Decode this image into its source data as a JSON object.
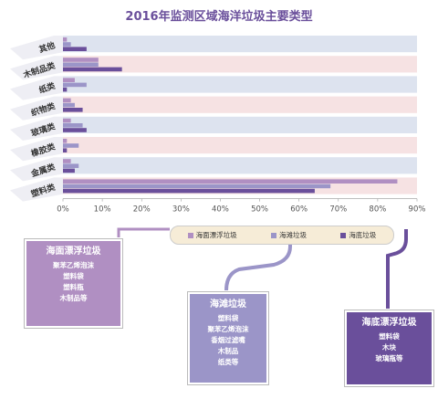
{
  "chart_data": {
    "type": "bar",
    "title": "2016年监测区域海洋垃圾主要类型",
    "categories": [
      "其他",
      "木制品类",
      "纸类",
      "织物类",
      "玻璃类",
      "橡胶类",
      "金属类",
      "塑料类"
    ],
    "series": [
      {
        "name": "海面漂浮垃圾",
        "color": "#b08fc2",
        "values": [
          1,
          9,
          3,
          2,
          2,
          1,
          2,
          85
        ]
      },
      {
        "name": "海滩垃圾",
        "color": "#9b95c8",
        "values": [
          2,
          9,
          6,
          3,
          5,
          4,
          4,
          68
        ]
      },
      {
        "name": "海底垃圾",
        "color": "#6a4f9b",
        "values": [
          6,
          15,
          1,
          5,
          6,
          1,
          3,
          64
        ]
      }
    ],
    "xlim": [
      0,
      90
    ],
    "xticks": [
      "0%",
      "10%",
      "20%",
      "30%",
      "40%",
      "50%",
      "60%",
      "70%",
      "80%",
      "90%"
    ],
    "row_colors": [
      "#dde3ef",
      "#f6e2e3"
    ]
  },
  "callouts": {
    "floating": {
      "title": "海面漂浮垃圾",
      "items": [
        "聚苯乙烯泡沫",
        "塑料袋",
        "塑料瓶",
        "木制品等"
      ]
    },
    "beach": {
      "title": "海滩垃圾",
      "items": [
        "塑料袋",
        "聚苯乙烯泡沫",
        "香烟过滤嘴",
        "木制品",
        "纸类等"
      ]
    },
    "seabed": {
      "title": "海底漂浮垃圾",
      "items": [
        "塑料袋",
        "木块",
        "玻璃瓶等"
      ]
    }
  }
}
